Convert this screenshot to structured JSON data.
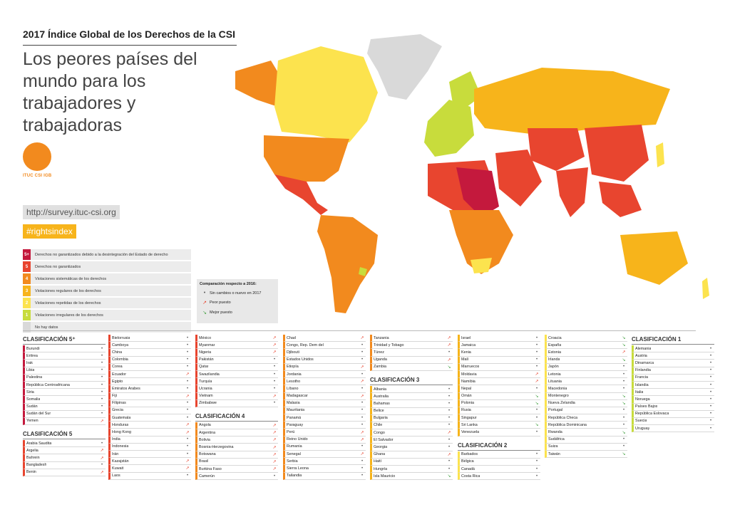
{
  "header": {
    "title": "2017 Índice Global de los Derechos de la CSI",
    "subtitle": "Los peores países del mundo para los trabajadores y trabajadoras"
  },
  "logo": {
    "text": "ITUC CSI IGB"
  },
  "links": {
    "url": "http://survey.ituc-csi.org",
    "hashtag": "#rightsindex"
  },
  "legend": [
    {
      "code": "5+",
      "color": "#c4193d",
      "label": "Derechos no garantizados debido a la desintegración del Estado de derecho"
    },
    {
      "code": "5",
      "color": "#e8452f",
      "label": "Derechos no garantizados"
    },
    {
      "code": "4",
      "color": "#f28a1e",
      "label": "Violaciones sistemáticas de los derechos"
    },
    {
      "code": "3",
      "color": "#f7b41b",
      "label": "Violaciones regulares de los derechos"
    },
    {
      "code": "2",
      "color": "#fce34e",
      "label": "Violaciones repetidas de los derechos"
    },
    {
      "code": "1",
      "color": "#c8dc3c",
      "label": "Violaciones irregulares de los derechos"
    },
    {
      "code": "",
      "color": "#d9d9d9",
      "label": "No hay datos"
    }
  ],
  "comparison": {
    "title": "Comparación respecto a 2016:",
    "items": [
      {
        "icon": "•",
        "kind": "same",
        "label": "Sin cambios o nuevo en 2017"
      },
      {
        "icon": "↗",
        "kind": "up",
        "label": "Peor puesto"
      },
      {
        "icon": "↘",
        "kind": "down",
        "label": "Mejor puesto"
      }
    ]
  },
  "trend_icons": {
    "same": "•",
    "up": "↗",
    "down": "↘"
  },
  "columns": [
    [
      {
        "title": "CLASIFICACIÓN 5⁺",
        "band": "5p"
      },
      {
        "n": "Burundi",
        "t": "same"
      },
      {
        "n": "Eritrea",
        "t": "same"
      },
      {
        "n": "Irak",
        "t": "same"
      },
      {
        "n": "Libia",
        "t": "same"
      },
      {
        "n": "Palestina",
        "t": "same"
      },
      {
        "n": "República Centroafricana",
        "t": "same"
      },
      {
        "n": "Siria",
        "t": "same"
      },
      {
        "n": "Somalia",
        "t": "same"
      },
      {
        "n": "Sudán",
        "t": "same"
      },
      {
        "n": "Sudán del Sur",
        "t": "same"
      },
      {
        "n": "Yemen",
        "t": "up"
      },
      {
        "title": "CLASIFICACIÓN 5",
        "band": "5"
      },
      {
        "n": "Arabia Saudita",
        "t": "same"
      },
      {
        "n": "Argelia",
        "t": "up"
      },
      {
        "n": "Bahrein",
        "t": "up"
      },
      {
        "n": "Bangladesh",
        "t": "same"
      },
      {
        "n": "Benin",
        "t": "up"
      }
    ],
    [
      {
        "band": "5"
      },
      {
        "n": "Bielorrusia",
        "t": "same"
      },
      {
        "n": "Camboya",
        "t": "same"
      },
      {
        "n": "China",
        "t": "same"
      },
      {
        "n": "Colombia",
        "t": "same"
      },
      {
        "n": "Corea",
        "t": "same"
      },
      {
        "n": "Ecuador",
        "t": "up"
      },
      {
        "n": "Egipto",
        "t": "same"
      },
      {
        "n": "Emiratos Árabes",
        "t": "same"
      },
      {
        "n": "Fiji",
        "t": "up"
      },
      {
        "n": "Filipinas",
        "t": "same"
      },
      {
        "n": "Grecia",
        "t": "same"
      },
      {
        "n": "Guatemala",
        "t": "same"
      },
      {
        "n": "Honduras",
        "t": "up"
      },
      {
        "n": "Hong Kong",
        "t": "up"
      },
      {
        "n": "India",
        "t": "same"
      },
      {
        "n": "Indonesia",
        "t": "same"
      },
      {
        "n": "Irán",
        "t": "same"
      },
      {
        "n": "Kazajstán",
        "t": "up"
      },
      {
        "n": "Kuwait",
        "t": "up"
      },
      {
        "n": "Laos",
        "t": "same"
      }
    ],
    [
      {
        "band": "5"
      },
      {
        "n": "México",
        "t": "up"
      },
      {
        "n": "Myanmar",
        "t": "up"
      },
      {
        "n": "Nigeria",
        "t": "up"
      },
      {
        "n": "Pakistán",
        "t": "same"
      },
      {
        "n": "Qatar",
        "t": "same"
      },
      {
        "n": "Swazilandia",
        "t": "same"
      },
      {
        "n": "Turquía",
        "t": "same"
      },
      {
        "n": "Ucrania",
        "t": "same"
      },
      {
        "n": "Vietnam",
        "t": "up"
      },
      {
        "n": "Zimbabwe",
        "t": "same"
      },
      {
        "title": "CLASIFICACIÓN 4",
        "band": "4"
      },
      {
        "n": "Angola",
        "t": "up"
      },
      {
        "n": "Argentina",
        "t": "up"
      },
      {
        "n": "Bolivia",
        "t": "up"
      },
      {
        "n": "Bosnia-Herzegovina",
        "t": "up"
      },
      {
        "n": "Botswana",
        "t": "up"
      },
      {
        "n": "Brasil",
        "t": "up"
      },
      {
        "n": "Burkina Faso",
        "t": "up"
      },
      {
        "n": "Camerún",
        "t": "same"
      }
    ],
    [
      {
        "band": "4"
      },
      {
        "n": "Chad",
        "t": "up"
      },
      {
        "n": "Congo, Rep. Dem del",
        "t": "same"
      },
      {
        "n": "Djibouti",
        "t": "same"
      },
      {
        "n": "Estados Unidos",
        "t": "same"
      },
      {
        "n": "Etiopía",
        "t": "up"
      },
      {
        "n": "Jordania",
        "t": "same"
      },
      {
        "n": "Lesotho",
        "t": "up"
      },
      {
        "n": "Líbano",
        "t": "same"
      },
      {
        "n": "Madagascar",
        "t": "up"
      },
      {
        "n": "Malasia",
        "t": "same"
      },
      {
        "n": "Mauritania",
        "t": "same"
      },
      {
        "n": "Panamá",
        "t": "same"
      },
      {
        "n": "Paraguay",
        "t": "same"
      },
      {
        "n": "Perú",
        "t": "up"
      },
      {
        "n": "Reino Unido",
        "t": "up"
      },
      {
        "n": "Rumania",
        "t": "same"
      },
      {
        "n": "Senegal",
        "t": "up"
      },
      {
        "n": "Serbia",
        "t": "same"
      },
      {
        "n": "Sierra Leona",
        "t": "same"
      },
      {
        "n": "Tailandia",
        "t": "same"
      }
    ],
    [
      {
        "band": "4"
      },
      {
        "n": "Tanzania",
        "t": "up"
      },
      {
        "n": "Trinidad y Tobago",
        "t": "up"
      },
      {
        "n": "Túnez",
        "t": "same"
      },
      {
        "n": "Uganda",
        "t": "up"
      },
      {
        "n": "Zambia",
        "t": "down"
      },
      {
        "title": "CLASIFICACIÓN 3",
        "band": "3"
      },
      {
        "n": "Albania",
        "t": "same"
      },
      {
        "n": "Australia",
        "t": "same"
      },
      {
        "n": "Bahamas",
        "t": "same"
      },
      {
        "n": "Belice",
        "t": "same"
      },
      {
        "n": "Bulgaria",
        "t": "same"
      },
      {
        "n": "Chile",
        "t": "same"
      },
      {
        "n": "Congo",
        "t": "up"
      },
      {
        "n": "El Salvador",
        "t": "same"
      },
      {
        "n": "Georgia",
        "t": "same"
      },
      {
        "n": "Ghana",
        "t": "up"
      },
      {
        "n": "Haití",
        "t": "same"
      },
      {
        "n": "Hungría",
        "t": "same"
      },
      {
        "n": "Isla Mauricio",
        "t": "down"
      }
    ],
    [
      {
        "band": "3"
      },
      {
        "n": "Israel",
        "t": "same"
      },
      {
        "n": "Jamaica",
        "t": "same"
      },
      {
        "n": "Kenia",
        "t": "same"
      },
      {
        "n": "Malí",
        "t": "same"
      },
      {
        "n": "Marruecos",
        "t": "same"
      },
      {
        "n": "Moldavia",
        "t": "up"
      },
      {
        "n": "Namibia",
        "t": "up"
      },
      {
        "n": "Nepal",
        "t": "same"
      },
      {
        "n": "Omán",
        "t": "down"
      },
      {
        "n": "Polonia",
        "t": "down"
      },
      {
        "n": "Rusia",
        "t": "same"
      },
      {
        "n": "Singapur",
        "t": "same"
      },
      {
        "n": "Sri Lanka",
        "t": "down"
      },
      {
        "n": "Venezuela",
        "t": "same"
      },
      {
        "title": "CLASIFICACIÓN 2",
        "band": "2"
      },
      {
        "n": "Barbados",
        "t": "same"
      },
      {
        "n": "Bélgica",
        "t": "same"
      },
      {
        "n": "Canadá",
        "t": "same"
      },
      {
        "n": "Costa Rica",
        "t": "same"
      }
    ],
    [
      {
        "band": "2"
      },
      {
        "n": "Croacia",
        "t": "down"
      },
      {
        "n": "España",
        "t": "down"
      },
      {
        "n": "Estonia",
        "t": "up"
      },
      {
        "n": "Irlanda",
        "t": "down"
      },
      {
        "n": "Japón",
        "t": "same"
      },
      {
        "n": "Letonia",
        "t": "same"
      },
      {
        "n": "Lituania",
        "t": "same"
      },
      {
        "n": "Macedonia",
        "t": "same"
      },
      {
        "n": "Montenegro",
        "t": "down"
      },
      {
        "n": "Nueva Zelandia",
        "t": "down"
      },
      {
        "n": "Portugal",
        "t": "same"
      },
      {
        "n": "República Checa",
        "t": "same"
      },
      {
        "n": "República Dominicana",
        "t": "same"
      },
      {
        "n": "Rwanda",
        "t": "down"
      },
      {
        "n": "Sudáfrica",
        "t": "same"
      },
      {
        "n": "Suiza",
        "t": "same"
      },
      {
        "n": "Taiwán",
        "t": "down"
      }
    ],
    [
      {
        "title": "CLASIFICACIÓN 1",
        "band": "1"
      },
      {
        "n": "Alemania",
        "t": "same"
      },
      {
        "n": "Austria",
        "t": "same"
      },
      {
        "n": "Dinamarca",
        "t": "same"
      },
      {
        "n": "Finlandia",
        "t": "same"
      },
      {
        "n": "Francia",
        "t": "same"
      },
      {
        "n": "Islandia",
        "t": "same"
      },
      {
        "n": "Italia",
        "t": "same"
      },
      {
        "n": "Noruega",
        "t": "same"
      },
      {
        "n": "Países Bajos",
        "t": "same"
      },
      {
        "n": "República Eslovaca",
        "t": "same"
      },
      {
        "n": "Suecia",
        "t": "same"
      },
      {
        "n": "Uruguay",
        "t": "same"
      }
    ]
  ]
}
